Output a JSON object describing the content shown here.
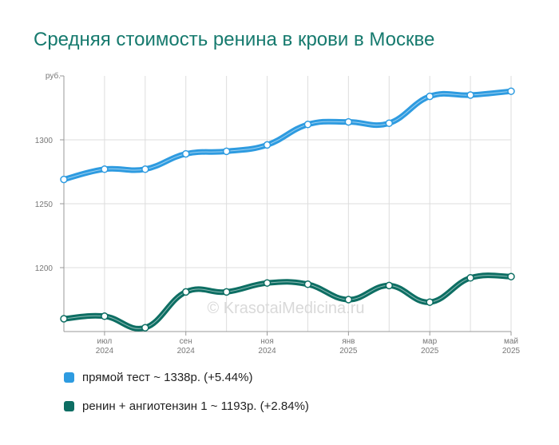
{
  "chart_data": {
    "type": "line",
    "title": "Средняя стоимость ренина в крови в Москве",
    "y_unit_label": "руб.",
    "yticks": [
      1200,
      1250,
      1300
    ],
    "ylim": [
      1150,
      1350
    ],
    "x": [
      "2024-06",
      "2024-07",
      "2024-08",
      "2024-09",
      "2024-10",
      "2024-11",
      "2024-12",
      "2025-01",
      "2025-02",
      "2025-03",
      "2025-04",
      "2025-05"
    ],
    "xtick_labels": [
      {
        "index": 1,
        "month": "июл",
        "year": "2024"
      },
      {
        "index": 3,
        "month": "сен",
        "year": "2024"
      },
      {
        "index": 5,
        "month": "ноя",
        "year": "2024"
      },
      {
        "index": 7,
        "month": "янв",
        "year": "2025"
      },
      {
        "index": 9,
        "month": "мар",
        "year": "2025"
      },
      {
        "index": 11,
        "month": "май",
        "year": "2025"
      }
    ],
    "grid": true,
    "watermark": "© KrasotaiMedicina.ru",
    "series": [
      {
        "name": "прямой тест",
        "color": "#2e9be0",
        "values": [
          1269,
          1277,
          1277,
          1289,
          1291,
          1296,
          1312,
          1314,
          1313,
          1334,
          1335,
          1338
        ]
      },
      {
        "name": "ренин + ангиотензин 1",
        "color": "#0d6e63",
        "values": [
          1160,
          1162,
          1153,
          1181,
          1181,
          1188,
          1187,
          1175,
          1186,
          1173,
          1192,
          1193
        ]
      }
    ]
  },
  "legend": [
    {
      "label": "прямой тест ~ 1338р. (+5.44%)",
      "color": "#2e9be0"
    },
    {
      "label": "ренин + ангиотензин 1 ~ 1193р. (+2.84%)",
      "color": "#0d6e63"
    }
  ]
}
